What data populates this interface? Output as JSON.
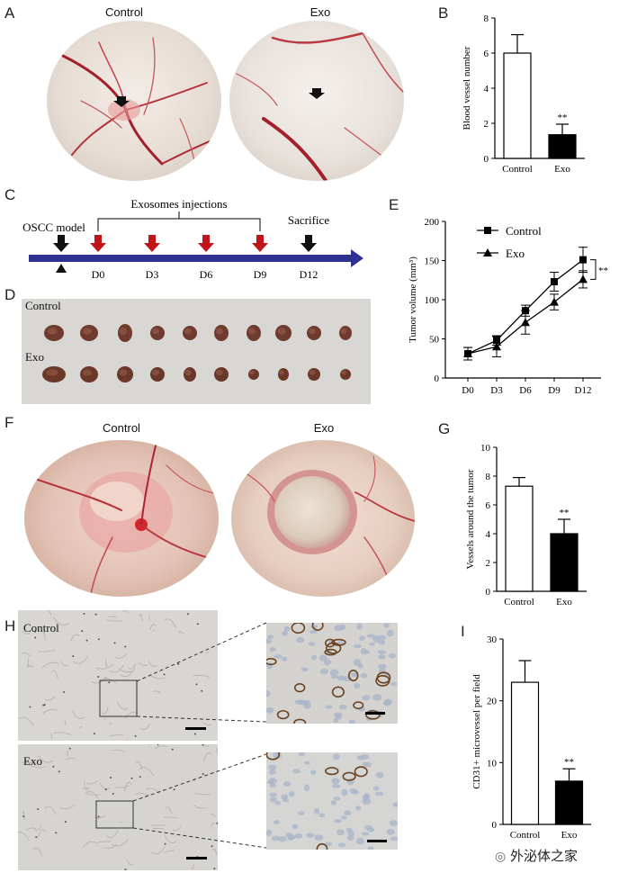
{
  "panels": {
    "A": {
      "label": "A",
      "control_label": "Control",
      "exo_label": "Exo"
    },
    "B": {
      "label": "B",
      "chart_data": {
        "type": "bar",
        "categories": [
          "Control",
          "Exo"
        ],
        "values": [
          6.0,
          1.35
        ],
        "errors": [
          1.05,
          0.6
        ],
        "ylabel": "Blood vessel number",
        "ylim": [
          0,
          8
        ],
        "yticks": [
          0,
          2,
          4,
          6,
          8
        ],
        "significance": "**",
        "colors": [
          "#ffffff",
          "#000000"
        ]
      }
    },
    "C": {
      "label": "C",
      "injections_label": "Exosomes injections",
      "model_label": "OSCC model",
      "sacrifice_label": "Sacrifice",
      "days": [
        "D0",
        "D3",
        "D6",
        "D9",
        "D12"
      ],
      "arrow_color": "#c0161a",
      "timeline_color": "#2e3192"
    },
    "D": {
      "label": "D",
      "control_label": "Control",
      "exo_label": "Exo"
    },
    "E": {
      "label": "E",
      "chart_data": {
        "type": "line",
        "x": [
          "D0",
          "D3",
          "D6",
          "D9",
          "D12"
        ],
        "series": [
          {
            "name": "Control",
            "values": [
              31,
              48,
              86,
              123,
              151
            ],
            "errors": [
              8,
              6,
              7,
              12,
              16
            ],
            "marker": "square"
          },
          {
            "name": "Exo",
            "values": [
              31,
              40,
              71,
              97,
              126
            ],
            "errors": [
              8,
              13,
              15,
              10,
              11
            ],
            "marker": "triangle"
          }
        ],
        "ylabel": "Tumor volume (mm³)",
        "ylim": [
          0,
          200
        ],
        "yticks": [
          0,
          50,
          100,
          150,
          200
        ],
        "legend": "top-left",
        "significance": "**"
      }
    },
    "F": {
      "label": "F",
      "control_label": "Control",
      "exo_label": "Exo"
    },
    "G": {
      "label": "G",
      "chart_data": {
        "type": "bar",
        "categories": [
          "Control",
          "Exo"
        ],
        "values": [
          7.3,
          4.0
        ],
        "errors": [
          0.6,
          1.0
        ],
        "ylabel": "Vessels around the tumor",
        "ylim": [
          0,
          10
        ],
        "yticks": [
          0,
          2,
          4,
          6,
          8,
          10
        ],
        "significance": "**",
        "colors": [
          "#ffffff",
          "#000000"
        ]
      }
    },
    "H": {
      "label": "H",
      "control_label": "Control",
      "exo_label": "Exo"
    },
    "I": {
      "label": "I",
      "chart_data": {
        "type": "bar",
        "categories": [
          "Control",
          "Exo"
        ],
        "values": [
          23,
          7
        ],
        "errors": [
          3.5,
          2.0
        ],
        "ylabel": "CD31+ microvessel per field",
        "ylim": [
          0,
          30
        ],
        "yticks": [
          0,
          10,
          20,
          30
        ],
        "significance": "**",
        "colors": [
          "#ffffff",
          "#000000"
        ]
      }
    }
  },
  "watermark": "外泌体之家"
}
